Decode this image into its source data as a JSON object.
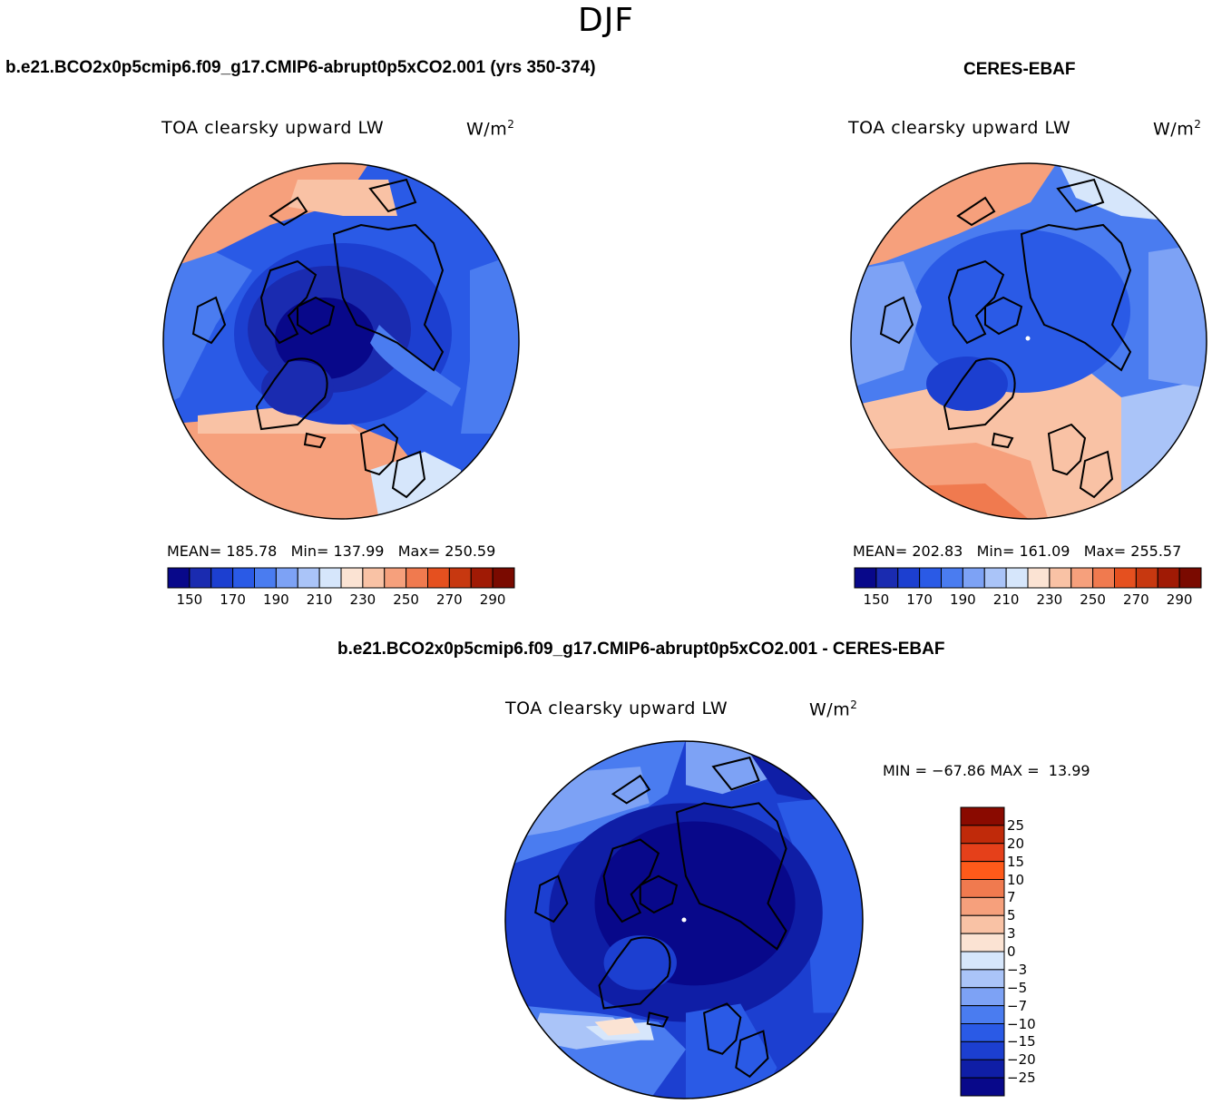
{
  "season": "DJF",
  "panels": [
    {
      "case_title": "b.e21.BCO2x0p5cmip6.f09_g17.CMIP6-abrupt0p5xCO2.001 (yrs 350-374)",
      "plot_title": "TOA clearsky upward LW",
      "units": "W/m",
      "units_sup": "2",
      "mean_label": "MEAN=",
      "mean": "185.78",
      "min_label": "Min=",
      "min": "137.99",
      "max_label": "Max=",
      "max": "250.59",
      "ticks": [
        "150",
        "170",
        "190",
        "210",
        "230",
        "250",
        "270",
        "290"
      ]
    },
    {
      "case_title": "CERES-EBAF",
      "plot_title": "TOA clearsky upward LW",
      "units": "W/m",
      "units_sup": "2",
      "mean_label": "MEAN=",
      "mean": "202.83",
      "min_label": "Min=",
      "min": "161.09",
      "max_label": "Max=",
      "max": "255.57",
      "ticks": [
        "150",
        "170",
        "190",
        "210",
        "230",
        "250",
        "270",
        "290"
      ]
    }
  ],
  "difference": {
    "case_title": "b.e21.BCO2x0p5cmip6.f09_g17.CMIP6-abrupt0p5xCO2.001 - CERES-EBAF",
    "plot_title": "TOA clearsky upward LW",
    "units": "W/m",
    "units_sup": "2",
    "min_label": "MIN =",
    "min": "−67.86",
    "max_label": "MAX =",
    "max": "13.99",
    "ticks": [
      "25",
      "20",
      "15",
      "10",
      "7",
      "5",
      "3",
      "0",
      "−3",
      "−5",
      "−7",
      "−10",
      "−15",
      "−20",
      "−25"
    ]
  },
  "colors": {
    "abs_scale": [
      "#08088a",
      "#1a2bb0",
      "#1c3fd0",
      "#2a5ae6",
      "#4a7cf0",
      "#7da2f5",
      "#aac4f8",
      "#d6e6fb",
      "#fbe3d3",
      "#f9c2a5",
      "#f6a07c",
      "#f07a4f",
      "#e5501f",
      "#c73810",
      "#a01a05",
      "#7a0a00"
    ],
    "diff_scale": [
      "#08088a",
      "#0f1ea6",
      "#1c3fd0",
      "#2a5ae6",
      "#4a7cf0",
      "#7da2f5",
      "#aac4f8",
      "#d6e6fb",
      "#fbe3d3",
      "#f9c2a5",
      "#f6a07c",
      "#f07a4f",
      "#ff5a1a",
      "#e5401a",
      "#c02a0a",
      "#8a0a00"
    ]
  }
}
